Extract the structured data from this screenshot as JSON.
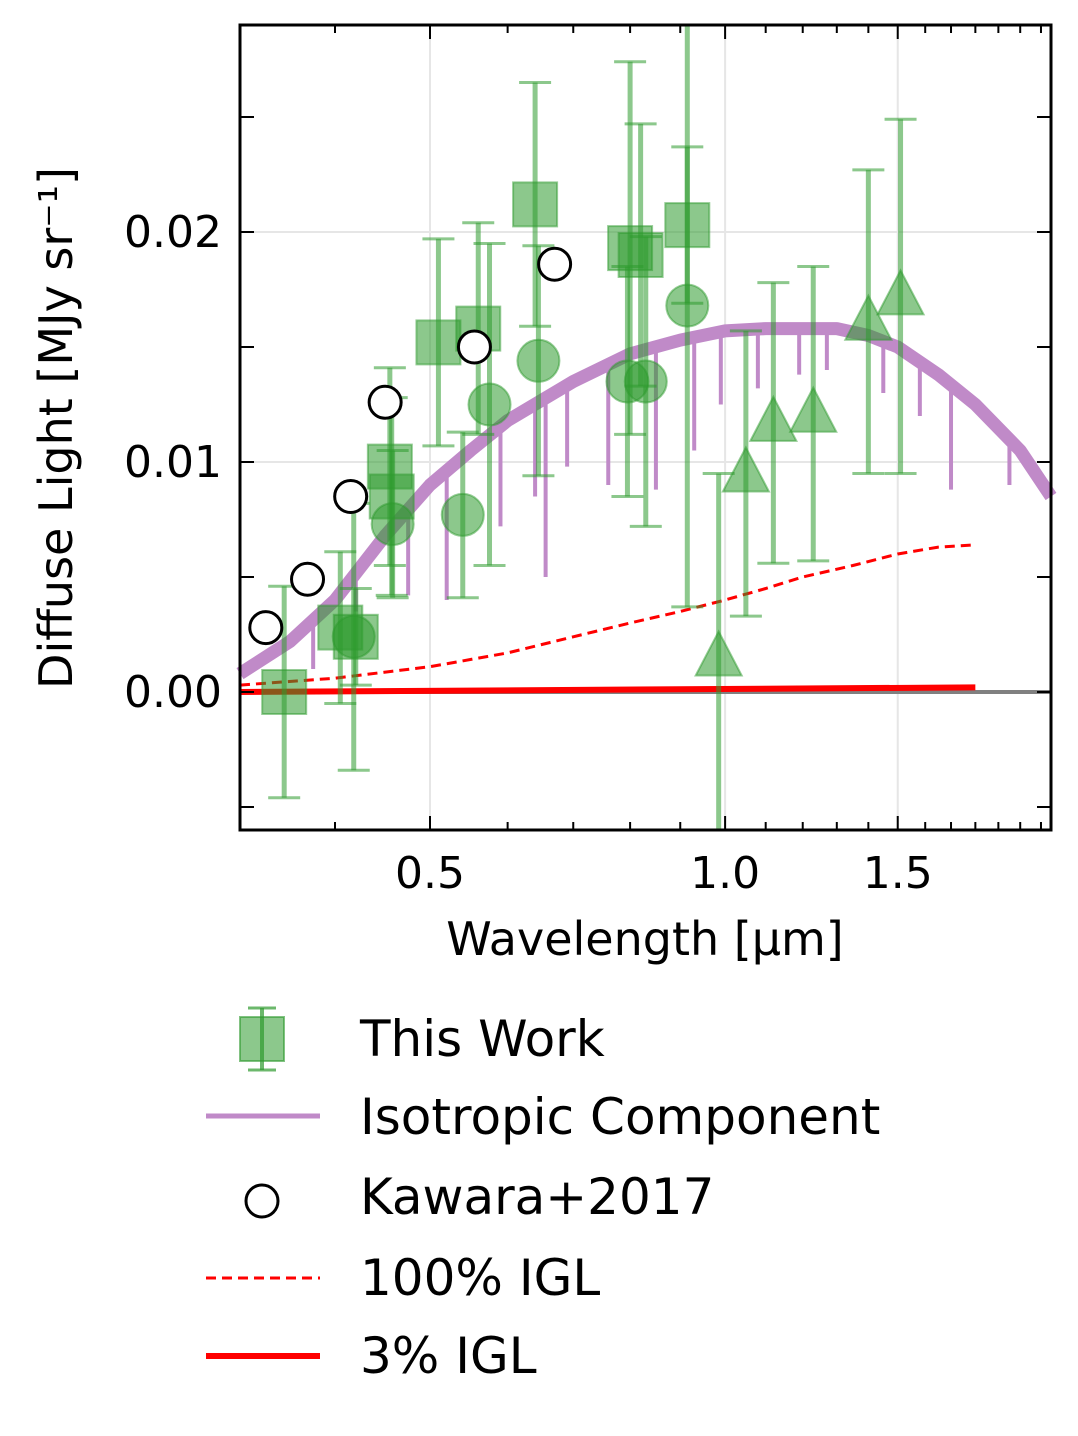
{
  "chart_data": {
    "type": "scatter",
    "xlabel": "Wavelength [μm]",
    "ylabel": "Diffuse Light [MJy sr⁻¹]",
    "xscale": "log",
    "xlim": [
      0.32,
      2.15
    ],
    "ylim": [
      -0.006,
      0.029
    ],
    "xticks": [
      0.5,
      1.0,
      1.5
    ],
    "xtick_labels": [
      "0.5",
      "1.0",
      "1.5"
    ],
    "yticks": [
      0.0,
      0.01,
      0.02
    ],
    "ytick_labels": [
      "0.00",
      "0.01",
      "0.02"
    ],
    "grid": true,
    "colors": {
      "this_work": "#2e9a2e",
      "isotropic": "#c08ac8",
      "igl": "#ff0000",
      "zero_line": "#808080",
      "kawara": "#000000"
    },
    "legend": {
      "placement": "below",
      "entries": [
        "This Work",
        "Isotropic Component",
        "Kawara+2017",
        "100% IGL",
        "3% IGL"
      ]
    },
    "series": [
      {
        "name": "This Work (squares)",
        "marker": "square",
        "points": [
          {
            "x": 0.355,
            "y": 0.0,
            "err": 0.0046
          },
          {
            "x": 0.405,
            "y": 0.0028,
            "err": 0.0033
          },
          {
            "x": 0.42,
            "y": 0.0024,
            "err": 0.0021
          },
          {
            "x": 0.455,
            "y": 0.0098,
            "err": 0.0043
          },
          {
            "x": 0.457,
            "y": 0.0085,
            "err": 0.0043
          },
          {
            "x": 0.51,
            "y": 0.0152,
            "err": 0.0045
          },
          {
            "x": 0.56,
            "y": 0.0158,
            "err": 0.0046
          },
          {
            "x": 0.64,
            "y": 0.0212,
            "err": 0.0053
          },
          {
            "x": 0.8,
            "y": 0.0193,
            "err": 0.0081
          },
          {
            "x": 0.82,
            "y": 0.019,
            "err": 0.0057
          },
          {
            "x": 0.915,
            "y": 0.0203,
            "err": 0.0034
          }
        ]
      },
      {
        "name": "This Work (circles)",
        "marker": "circle",
        "points": [
          {
            "x": 0.418,
            "y": 0.0024,
            "err": 0.0058
          },
          {
            "x": 0.458,
            "y": 0.0073,
            "err": 0.0032
          },
          {
            "x": 0.54,
            "y": 0.0077,
            "err": 0.0036
          },
          {
            "x": 0.575,
            "y": 0.0125,
            "err": 0.007
          },
          {
            "x": 0.645,
            "y": 0.0144,
            "err": 0.005
          },
          {
            "x": 0.795,
            "y": 0.0135,
            "err": 0.005
          },
          {
            "x": 0.83,
            "y": 0.0135,
            "err": 0.0063
          },
          {
            "x": 0.915,
            "y": 0.0168,
            "err": 0.0131
          }
        ]
      },
      {
        "name": "This Work (triangles)",
        "marker": "triangle",
        "points": [
          {
            "x": 0.985,
            "y": 0.0015,
            "err": 0.008
          },
          {
            "x": 1.05,
            "y": 0.0095,
            "err": 0.0062
          },
          {
            "x": 1.12,
            "y": 0.0117,
            "err": 0.0061
          },
          {
            "x": 1.23,
            "y": 0.0121,
            "err": 0.0064
          },
          {
            "x": 1.4,
            "y": 0.0161,
            "err": 0.0066
          },
          {
            "x": 1.51,
            "y": 0.0172,
            "err": 0.0077
          }
        ]
      },
      {
        "name": "Kawara+2017",
        "marker": "open-circle",
        "points": [
          {
            "x": 0.34,
            "y": 0.0028
          },
          {
            "x": 0.375,
            "y": 0.0049
          },
          {
            "x": 0.415,
            "y": 0.0085
          },
          {
            "x": 0.45,
            "y": 0.0126
          },
          {
            "x": 0.555,
            "y": 0.015
          },
          {
            "x": 0.67,
            "y": 0.0186
          }
        ]
      },
      {
        "name": "100% IGL",
        "style": "dashed",
        "x": [
          0.32,
          0.4,
          0.5,
          0.6,
          0.7,
          0.8,
          0.9,
          1.0,
          1.1,
          1.2,
          1.35,
          1.5,
          1.65,
          1.8
        ],
        "y": [
          0.0003,
          0.0006,
          0.0011,
          0.0017,
          0.0024,
          0.003,
          0.0035,
          0.004,
          0.0045,
          0.005,
          0.0055,
          0.006,
          0.0063,
          0.0064
        ]
      },
      {
        "name": "3% IGL",
        "style": "solid",
        "x": [
          0.32,
          1.8
        ],
        "y": [
          0.0,
          0.0002
        ]
      },
      {
        "name": "Isotropic Component",
        "style": "solid",
        "x": [
          0.32,
          0.36,
          0.4,
          0.45,
          0.5,
          0.55,
          0.6,
          0.7,
          0.8,
          0.9,
          1.0,
          1.1,
          1.2,
          1.3,
          1.4,
          1.5,
          1.65,
          1.8,
          2.0,
          2.15
        ],
        "y": [
          0.0008,
          0.0022,
          0.004,
          0.0068,
          0.009,
          0.0105,
          0.0118,
          0.0135,
          0.0147,
          0.0153,
          0.0157,
          0.0158,
          0.0158,
          0.0158,
          0.0155,
          0.015,
          0.0138,
          0.0125,
          0.0105,
          0.0085
        ],
        "absorption_x": [
          0.38,
          0.42,
          0.475,
          0.52,
          0.59,
          0.64,
          0.656,
          0.69,
          0.76,
          0.85,
          0.93,
          0.99,
          1.08,
          1.19,
          1.27,
          1.45,
          1.58,
          1.7,
          1.95
        ],
        "absorption_y": [
          0.001,
          0.0035,
          0.0042,
          0.004,
          0.0072,
          0.0085,
          0.005,
          0.0098,
          0.009,
          0.0088,
          0.0105,
          0.0125,
          0.0132,
          0.0138,
          0.014,
          0.013,
          0.012,
          0.0088,
          0.009
        ]
      }
    ]
  }
}
